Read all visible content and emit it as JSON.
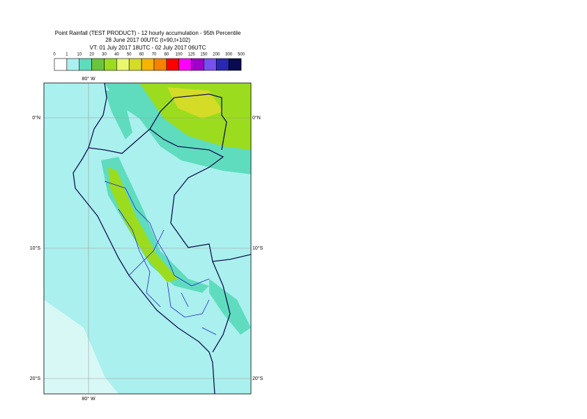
{
  "header": {
    "title": "Point Rainfall (TEST PRODUCT) - 12 hourly accumulation - 95th Percentile",
    "base_time": "28 June 2017 00UTC (t+90,t+102)",
    "valid_time": "VT: 01 July 2017 18UTC - 02 July 2017 06UTC"
  },
  "legend": {
    "labels": [
      0,
      1,
      10,
      20,
      30,
      40,
      50,
      60,
      70,
      80,
      100,
      125,
      150,
      200,
      300,
      500
    ],
    "colors": [
      "#ffffff",
      "#aaf0ee",
      "#5fdcbe",
      "#6ac43c",
      "#9bdc1e",
      "#e8f76e",
      "#d4dc28",
      "#f5b400",
      "#f58200",
      "#ff0000",
      "#ff00ff",
      "#a000c8",
      "#7850f0",
      "#2828b4",
      "#0a0a50"
    ]
  },
  "grid_labels": {
    "lon": [
      "80° W"
    ],
    "lat": [
      "0°N",
      "10°S",
      "20°S"
    ]
  }
}
